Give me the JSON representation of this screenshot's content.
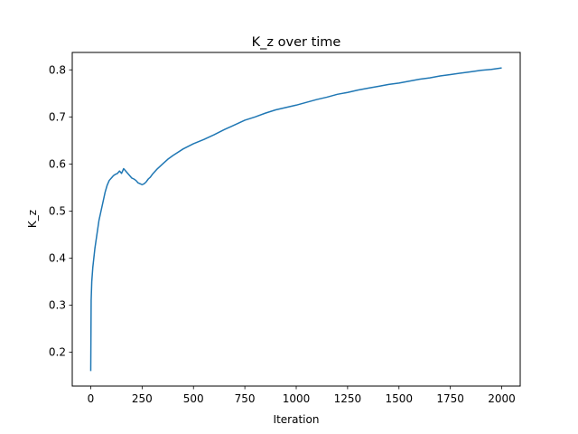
{
  "chart_data": {
    "type": "line",
    "title": "K_z over time",
    "xlabel": "Iteration",
    "ylabel": "K_z",
    "xlim": [
      -90,
      2090
    ],
    "ylim": [
      0.128,
      0.837
    ],
    "xticks": [
      0,
      250,
      500,
      750,
      1000,
      1250,
      1500,
      1750,
      2000
    ],
    "yticks": [
      0.2,
      0.3,
      0.4,
      0.5,
      0.6,
      0.7,
      0.8
    ],
    "grid": false,
    "line_color": "#1f77b4",
    "series": [
      {
        "x": [
          0,
          2,
          5,
          10,
          15,
          20,
          30,
          40,
          50,
          60,
          70,
          80,
          90,
          100,
          110,
          120,
          130,
          140,
          150,
          160,
          170,
          180,
          190,
          200,
          210,
          220,
          230,
          240,
          250,
          260,
          270,
          280,
          290,
          300,
          325,
          350,
          375,
          400,
          450,
          500,
          550,
          600,
          650,
          700,
          750,
          800,
          850,
          900,
          950,
          1000,
          1050,
          1100,
          1150,
          1200,
          1250,
          1300,
          1350,
          1400,
          1450,
          1500,
          1550,
          1600,
          1650,
          1700,
          1750,
          1800,
          1850,
          1900,
          1950,
          2000
        ],
        "y": [
          0.16,
          0.31,
          0.35,
          0.38,
          0.4,
          0.42,
          0.45,
          0.48,
          0.5,
          0.52,
          0.54,
          0.555,
          0.565,
          0.57,
          0.575,
          0.578,
          0.58,
          0.585,
          0.58,
          0.59,
          0.585,
          0.58,
          0.575,
          0.57,
          0.568,
          0.565,
          0.56,
          0.558,
          0.556,
          0.558,
          0.562,
          0.568,
          0.572,
          0.578,
          0.59,
          0.6,
          0.61,
          0.618,
          0.632,
          0.643,
          0.652,
          0.662,
          0.673,
          0.683,
          0.693,
          0.7,
          0.708,
          0.715,
          0.72,
          0.725,
          0.731,
          0.737,
          0.742,
          0.748,
          0.752,
          0.757,
          0.761,
          0.765,
          0.769,
          0.772,
          0.776,
          0.78,
          0.783,
          0.787,
          0.79,
          0.793,
          0.796,
          0.799,
          0.801,
          0.804
        ]
      }
    ]
  }
}
